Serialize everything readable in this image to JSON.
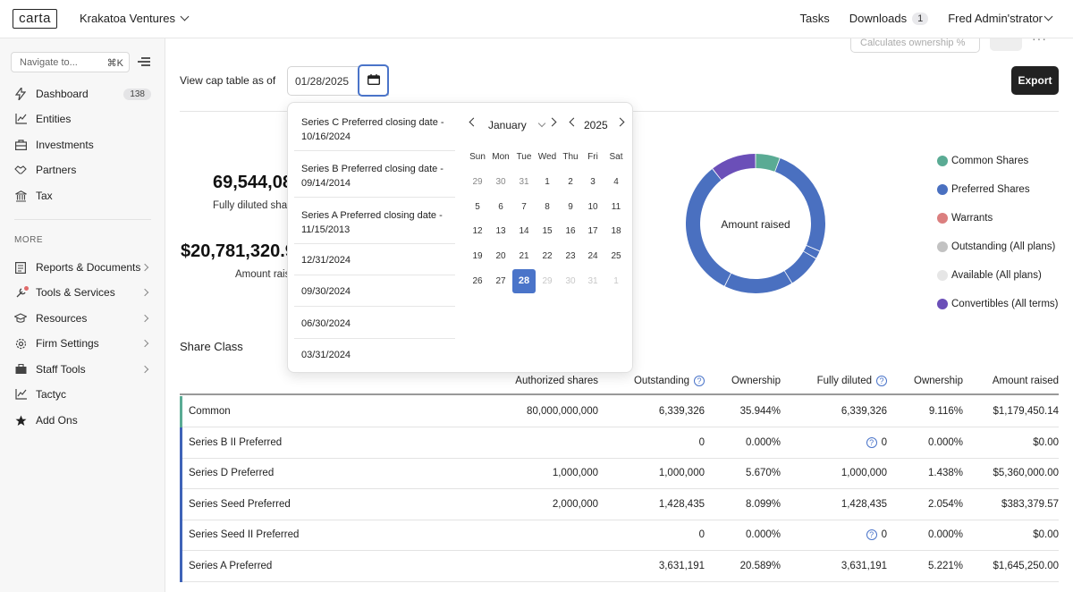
{
  "app": {
    "logo": "carta",
    "company": "Krakatoa Ventures",
    "tasks": "Tasks",
    "downloads": "Downloads",
    "downloads_count": "1",
    "user": "Fred Admin'strator"
  },
  "sidebar": {
    "search_placeholder": "Navigate to...",
    "search_shortcut": "⌘K",
    "items": [
      {
        "label": "Dashboard",
        "icon": "lightning-icon",
        "badge": "138"
      },
      {
        "label": "Entities",
        "icon": "chart-icon"
      },
      {
        "label": "Investments",
        "icon": "briefcase-icon"
      },
      {
        "label": "Partners",
        "icon": "handshake-icon"
      },
      {
        "label": "Tax",
        "icon": "bank-icon"
      }
    ],
    "more_label": "MORE",
    "more_items": [
      {
        "label": "Reports & Documents",
        "icon": "document-icon"
      },
      {
        "label": "Tools & Services",
        "icon": "tools-icon"
      },
      {
        "label": "Resources",
        "icon": "graduation-icon"
      },
      {
        "label": "Firm Settings",
        "icon": "gear-icon"
      },
      {
        "label": "Staff Tools",
        "icon": "staff-icon"
      },
      {
        "label": "Tactyc",
        "icon": "chart-icon"
      },
      {
        "label": "Add Ons",
        "icon": "star-icon"
      }
    ]
  },
  "toolbar": {
    "calc_placeholder": "Calculates ownership %",
    "view_label": "View cap table as of",
    "date_value": "01/28/2025",
    "export_label": "Export"
  },
  "stats": {
    "fully_diluted_value": "69,544,08",
    "fully_diluted_label": "Fully diluted sha",
    "amount_raised_value": "$20,781,320.9",
    "amount_raised_label": "Amount raise"
  },
  "donut": {
    "center_label": "Amount raised",
    "segments": [
      {
        "name": "Common Shares",
        "color": "#5aab94",
        "fraction": 0.0567
      },
      {
        "name": "Preferred Shares",
        "color": "#4a70c0",
        "fraction": 0.2579
      },
      {
        "name": "Preferred Shares 2",
        "color": "#4a70c0",
        "fraction": 0.0189
      },
      {
        "name": "Preferred Shares 3",
        "color": "#4a70c0",
        "fraction": 0.0792
      },
      {
        "name": "Preferred Shares 4",
        "color": "#4a70c0",
        "fraction": 0.1604
      },
      {
        "name": "Preferred Shares 5",
        "color": "#4a70c0",
        "fraction": 0.3208
      },
      {
        "name": "Convertibles",
        "color": "#6b4fb8",
        "fraction": 0.1061
      }
    ]
  },
  "legend": [
    {
      "label": "Common Shares",
      "color": "#5aab94"
    },
    {
      "label": "Preferred Shares",
      "color": "#4a70c0"
    },
    {
      "label": "Warrants",
      "color": "#db7f7f"
    },
    {
      "label": "Outstanding (All plans)",
      "color": "#c2c2c2"
    },
    {
      "label": "Available (All plans)",
      "color": "#e6e6e6"
    },
    {
      "label": "Convertibles (All terms)",
      "color": "#6b4fb8"
    }
  ],
  "share_class_title": "Share Class",
  "table": {
    "headers": [
      "Authorized shares",
      "Outstanding",
      "Ownership",
      "Fully diluted",
      "Ownership",
      "Amount raised"
    ],
    "rows": [
      {
        "name": "Common",
        "authorized": "80,000,000,000",
        "outstanding": "6,339,326",
        "ownership": "35.944%",
        "fully_diluted": "6,339,326",
        "fd_ownership": "9.116%",
        "amount": "$1,179,450.14",
        "bar": "#5aab94",
        "fd_help": false
      },
      {
        "name": "Series B II Preferred",
        "authorized": "",
        "outstanding": "0",
        "ownership": "0.000%",
        "fully_diluted": "0",
        "fd_ownership": "0.000%",
        "amount": "$0.00",
        "bar": "#3f63b8",
        "fd_help": true
      },
      {
        "name": "Series D Preferred",
        "authorized": "1,000,000",
        "outstanding": "1,000,000",
        "ownership": "5.670%",
        "fully_diluted": "1,000,000",
        "fd_ownership": "1.438%",
        "amount": "$5,360,000.00",
        "bar": "#3f63b8",
        "fd_help": false
      },
      {
        "name": "Series Seed Preferred",
        "authorized": "2,000,000",
        "outstanding": "1,428,435",
        "ownership": "8.099%",
        "fully_diluted": "1,428,435",
        "fd_ownership": "2.054%",
        "amount": "$383,379.57",
        "bar": "#3f63b8",
        "fd_help": false
      },
      {
        "name": "Series Seed II Preferred",
        "authorized": "",
        "outstanding": "0",
        "ownership": "0.000%",
        "fully_diluted": "0",
        "fd_ownership": "0.000%",
        "amount": "$0.00",
        "bar": "#3f63b8",
        "fd_help": true
      },
      {
        "name": "Series A Preferred",
        "authorized": "",
        "outstanding": "3,631,191",
        "ownership": "20.589%",
        "fully_diluted": "3,631,191",
        "fd_ownership": "5.221%",
        "amount": "$1,645,250.00",
        "bar": "#3f63b8",
        "fd_help": false
      }
    ]
  },
  "datepicker": {
    "presets": [
      "Series C Preferred closing date - 10/16/2024",
      "Series B Preferred closing date - 09/14/2014",
      "Series A Preferred closing date - 11/15/2013",
      "12/31/2024",
      "09/30/2024",
      "06/30/2024",
      "03/31/2024"
    ],
    "month": "January",
    "year": "2025",
    "weekdays": [
      "Sun",
      "Mon",
      "Tue",
      "Wed",
      "Thu",
      "Fri",
      "Sat"
    ],
    "weeks": [
      [
        {
          "d": "29",
          "s": "muted"
        },
        {
          "d": "30",
          "s": "muted"
        },
        {
          "d": "31",
          "s": "muted"
        },
        {
          "d": "1",
          "s": ""
        },
        {
          "d": "2",
          "s": ""
        },
        {
          "d": "3",
          "s": ""
        },
        {
          "d": "4",
          "s": ""
        }
      ],
      [
        {
          "d": "5",
          "s": ""
        },
        {
          "d": "6",
          "s": ""
        },
        {
          "d": "7",
          "s": ""
        },
        {
          "d": "8",
          "s": ""
        },
        {
          "d": "9",
          "s": ""
        },
        {
          "d": "10",
          "s": ""
        },
        {
          "d": "11",
          "s": ""
        }
      ],
      [
        {
          "d": "12",
          "s": ""
        },
        {
          "d": "13",
          "s": ""
        },
        {
          "d": "14",
          "s": ""
        },
        {
          "d": "15",
          "s": ""
        },
        {
          "d": "16",
          "s": ""
        },
        {
          "d": "17",
          "s": ""
        },
        {
          "d": "18",
          "s": ""
        }
      ],
      [
        {
          "d": "19",
          "s": ""
        },
        {
          "d": "20",
          "s": ""
        },
        {
          "d": "21",
          "s": ""
        },
        {
          "d": "22",
          "s": ""
        },
        {
          "d": "23",
          "s": ""
        },
        {
          "d": "24",
          "s": ""
        },
        {
          "d": "25",
          "s": ""
        }
      ],
      [
        {
          "d": "26",
          "s": ""
        },
        {
          "d": "27",
          "s": ""
        },
        {
          "d": "28",
          "s": "sel"
        },
        {
          "d": "29",
          "s": "future"
        },
        {
          "d": "30",
          "s": "future"
        },
        {
          "d": "31",
          "s": "future"
        },
        {
          "d": "1",
          "s": "future"
        }
      ]
    ]
  }
}
